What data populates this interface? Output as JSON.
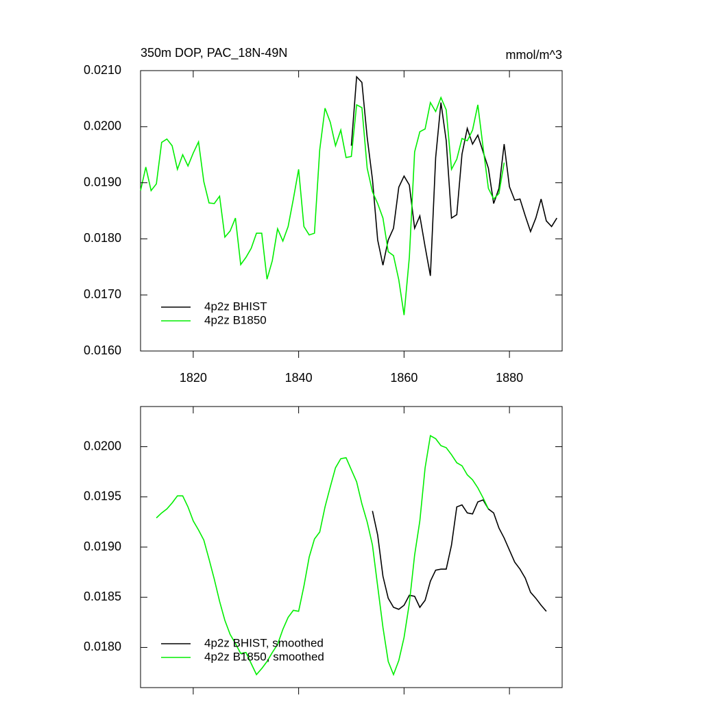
{
  "chart_data": [
    {
      "type": "line",
      "title": "350m DOP, PAC_18N-49N",
      "subtitle": "mmol/m^3",
      "x": [
        1810,
        1811,
        1812,
        1813,
        1814,
        1815,
        1816,
        1817,
        1818,
        1819,
        1820,
        1821,
        1822,
        1823,
        1824,
        1825,
        1826,
        1827,
        1828,
        1829,
        1830,
        1831,
        1832,
        1833,
        1834,
        1835,
        1836,
        1837,
        1838,
        1839,
        1840,
        1841,
        1842,
        1843,
        1844,
        1845,
        1846,
        1847,
        1848,
        1849,
        1850,
        1851,
        1852,
        1853,
        1854,
        1855,
        1856,
        1857,
        1858,
        1859,
        1860,
        1861,
        1862,
        1863,
        1864,
        1865,
        1866,
        1867,
        1868,
        1869,
        1870,
        1871,
        1872,
        1873,
        1874,
        1875,
        1876,
        1877,
        1878,
        1879,
        1880,
        1881,
        1882,
        1883,
        1884,
        1885,
        1886,
        1887,
        1888,
        1889
      ],
      "series": [
        {
          "name": "4p2z BHIST",
          "color": "#000000",
          "values": [
            null,
            null,
            null,
            null,
            null,
            null,
            null,
            null,
            null,
            null,
            null,
            null,
            null,
            null,
            null,
            null,
            null,
            null,
            null,
            null,
            null,
            null,
            null,
            null,
            null,
            null,
            null,
            null,
            null,
            null,
            null,
            null,
            null,
            null,
            null,
            null,
            null,
            null,
            null,
            null,
            0.01966,
            0.02089,
            0.02079,
            0.01981,
            0.01906,
            0.01798,
            0.01753,
            0.01798,
            0.01819,
            0.01892,
            0.01912,
            0.01896,
            0.01819,
            0.01841,
            0.01786,
            0.01734,
            0.01945,
            0.02043,
            0.01975,
            0.01837,
            0.01843,
            0.01951,
            0.01997,
            0.01969,
            0.01985,
            0.01955,
            0.01926,
            0.01863,
            0.0189,
            0.01969,
            0.01893,
            0.01869,
            0.01871,
            0.01841,
            0.01813,
            0.01837,
            0.01871,
            0.01832,
            0.01822,
            0.01837
          ]
        },
        {
          "name": "4p2z B1850",
          "color": "#00ee00",
          "values": [
            0.01886,
            0.01928,
            0.01886,
            0.01898,
            0.01972,
            0.01978,
            0.01966,
            0.01924,
            0.0195,
            0.0193,
            0.01953,
            0.01973,
            0.01902,
            0.01864,
            0.01863,
            0.01876,
            0.01803,
            0.01814,
            0.01837,
            0.01754,
            0.01767,
            0.01783,
            0.0181,
            0.0181,
            0.01728,
            0.01761,
            0.01818,
            0.01796,
            0.01822,
            0.01871,
            0.01924,
            0.01822,
            0.01807,
            0.0181,
            0.01959,
            0.02033,
            0.02008,
            0.01966,
            0.01994,
            0.01945,
            0.01947,
            0.02039,
            0.02034,
            0.01926,
            0.01884,
            0.01863,
            0.01837,
            0.01777,
            0.0177,
            0.01727,
            0.01664,
            0.01767,
            0.01955,
            0.01991,
            0.01996,
            0.02043,
            0.02027,
            0.02052,
            0.0203,
            0.01924,
            0.01942,
            0.01979,
            0.01975,
            0.01994,
            0.02039,
            0.01963,
            0.0189,
            0.01871,
            0.01881,
            0.01936,
            null,
            null,
            null,
            null,
            null,
            null,
            null,
            null,
            null,
            null
          ]
        }
      ],
      "xlim": [
        1810,
        1890
      ],
      "xticks": [
        1820,
        1840,
        1860,
        1880
      ],
      "xtick_labels": true,
      "ylim": [
        0.016,
        0.021
      ],
      "yticks": [
        {
          "value": 0.016,
          "label": "0.0160"
        },
        {
          "value": 0.017,
          "label": "0.0170"
        },
        {
          "value": 0.018,
          "label": "0.0180"
        },
        {
          "value": 0.019,
          "label": "0.0190"
        },
        {
          "value": 0.02,
          "label": "0.0200"
        },
        {
          "value": 0.021,
          "label": "0.0210"
        }
      ],
      "legend": "lower left"
    },
    {
      "type": "line",
      "x": [
        1813,
        1814,
        1815,
        1816,
        1817,
        1818,
        1819,
        1820,
        1821,
        1822,
        1823,
        1824,
        1825,
        1826,
        1827,
        1828,
        1829,
        1830,
        1831,
        1832,
        1833,
        1834,
        1835,
        1836,
        1837,
        1838,
        1839,
        1840,
        1841,
        1842,
        1843,
        1844,
        1845,
        1846,
        1847,
        1848,
        1849,
        1850,
        1851,
        1852,
        1853,
        1854,
        1855,
        1856,
        1857,
        1858,
        1859,
        1860,
        1861,
        1862,
        1863,
        1864,
        1865,
        1866,
        1867,
        1868,
        1869,
        1870,
        1871,
        1872,
        1873,
        1874,
        1875,
        1876,
        1877,
        1878,
        1879,
        1880,
        1881,
        1882,
        1883,
        1884,
        1885,
        1886,
        1887
      ],
      "series": [
        {
          "name": "4p2z BHIST, smoothed",
          "color": "#000000",
          "values": [
            null,
            null,
            null,
            null,
            null,
            null,
            null,
            null,
            null,
            null,
            null,
            null,
            null,
            null,
            null,
            null,
            null,
            null,
            null,
            null,
            null,
            null,
            null,
            null,
            null,
            null,
            null,
            null,
            null,
            null,
            null,
            null,
            null,
            null,
            null,
            null,
            null,
            null,
            null,
            null,
            null,
            0.01936,
            0.01912,
            0.01871,
            0.01849,
            0.0184,
            0.01838,
            0.01842,
            0.01852,
            0.01851,
            0.0184,
            0.01847,
            0.01866,
            0.01877,
            0.01878,
            0.01878,
            0.01902,
            0.0194,
            0.01942,
            0.01934,
            0.01933,
            0.01945,
            0.01947,
            0.01938,
            0.01934,
            0.01919,
            0.01909,
            0.01897,
            0.01885,
            0.01878,
            0.01869,
            0.01855,
            0.01849,
            0.01842,
            0.01836
          ]
        },
        {
          "name": "4p2z B1850, smoothed",
          "color": "#00ee00",
          "values": [
            0.01929,
            0.01934,
            0.01938,
            0.01944,
            0.01951,
            0.01951,
            0.0194,
            0.01926,
            0.01917,
            0.01907,
            0.01888,
            0.01868,
            0.01846,
            0.01827,
            0.01813,
            0.01804,
            0.01794,
            0.01795,
            0.01784,
            0.01773,
            0.01779,
            0.01786,
            0.01795,
            0.01803,
            0.01818,
            0.0183,
            0.01837,
            0.01836,
            0.01861,
            0.0189,
            0.01908,
            0.01915,
            0.0194,
            0.0196,
            0.01979,
            0.01988,
            0.01989,
            0.01977,
            0.01965,
            0.01943,
            0.01925,
            0.01902,
            0.01861,
            0.0182,
            0.01786,
            0.01773,
            0.01787,
            0.0181,
            0.01844,
            0.01892,
            0.01926,
            0.01979,
            0.02011,
            0.02008,
            0.02001,
            0.01999,
            0.01992,
            0.01984,
            0.01981,
            0.01972,
            0.01967,
            0.01959,
            0.01949,
            0.01938,
            null,
            null,
            null,
            null,
            null,
            null,
            null,
            null,
            null,
            null,
            null
          ]
        }
      ],
      "xlim": [
        1810,
        1890
      ],
      "xticks": [
        1820,
        1840,
        1860,
        1880
      ],
      "xtick_labels": false,
      "ylim": [
        0.0176,
        0.0204
      ],
      "yticks": [
        {
          "value": 0.018,
          "label": "0.0180"
        },
        {
          "value": 0.0185,
          "label": "0.0185"
        },
        {
          "value": 0.019,
          "label": "0.0190"
        },
        {
          "value": 0.0195,
          "label": "0.0195"
        },
        {
          "value": 0.02,
          "label": "0.0200"
        }
      ],
      "legend": "lower left"
    }
  ]
}
